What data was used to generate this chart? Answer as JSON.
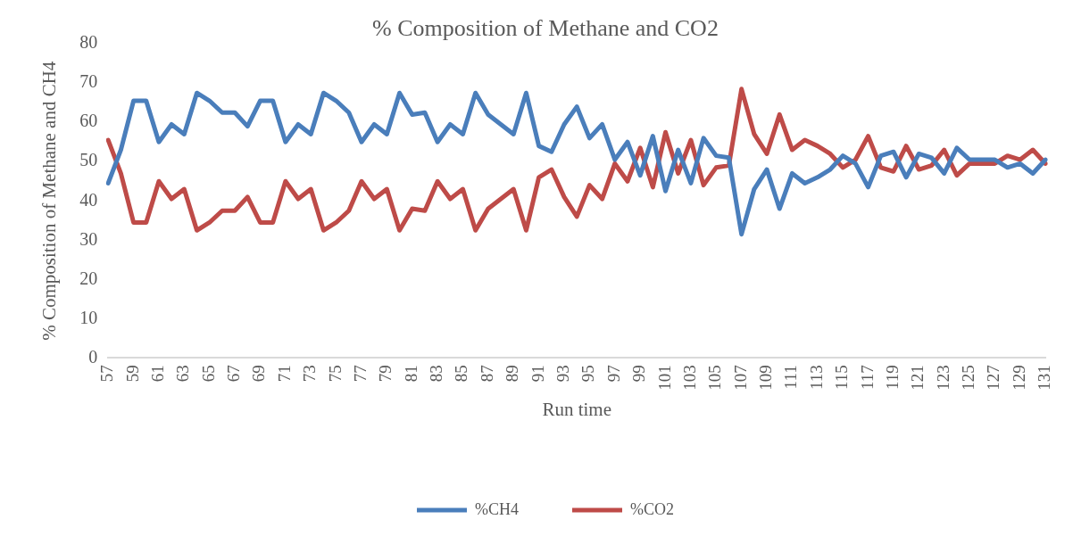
{
  "chart_data": {
    "type": "line",
    "title": "% Composition of Methane and CO2",
    "xlabel": "Run time",
    "ylabel": "% Composition of Methane and CH4",
    "categories": [
      "57",
      null,
      "59",
      null,
      "61",
      null,
      "63",
      null,
      "65",
      null,
      "67",
      null,
      "69",
      null,
      "71",
      null,
      "73",
      null,
      "75",
      null,
      "77",
      null,
      "79",
      null,
      "81",
      null,
      "83",
      null,
      "85",
      null,
      "87",
      null,
      "89",
      null,
      "91",
      null,
      "93",
      null,
      "95",
      null,
      "97",
      null,
      "99",
      null,
      "101",
      null,
      "103",
      null,
      "105",
      null,
      "107",
      null,
      "109",
      null,
      "111",
      null,
      "113",
      null,
      "115",
      null,
      "117",
      null,
      "119",
      null,
      "121",
      null,
      "123",
      null,
      "125",
      null,
      "127",
      null,
      "129",
      null,
      "131"
    ],
    "series": [
      {
        "name": "%CH4",
        "color": "#4a7ebb",
        "values": [
          44.5,
          53,
          65.5,
          65.5,
          55,
          59.5,
          57,
          67.5,
          65.5,
          62.5,
          62.5,
          59,
          65.5,
          65.5,
          55,
          59.5,
          57,
          67.5,
          65.5,
          62.5,
          55,
          59.5,
          57,
          67.5,
          62,
          62.5,
          55,
          59.5,
          57,
          67.5,
          62,
          59.5,
          57,
          67.5,
          54,
          52.5,
          59.5,
          64,
          56,
          59.5,
          50.5,
          55,
          46.5,
          56.5,
          42.5,
          53,
          44.5,
          56,
          51.5,
          51,
          31.5,
          43,
          48,
          38,
          47,
          44.5,
          46,
          48,
          51.5,
          49.5,
          43.5,
          51.5,
          52.5,
          46,
          52,
          51,
          47,
          53.5,
          50.5,
          50.5,
          50.5,
          48.5,
          49.5,
          47,
          50.5
        ]
      },
      {
        "name": "%CO2",
        "color": "#be4b48",
        "values": [
          55.5,
          47,
          34.5,
          34.5,
          45,
          40.5,
          43,
          32.5,
          34.5,
          37.5,
          37.5,
          41,
          34.5,
          34.5,
          45,
          40.5,
          43,
          32.5,
          34.5,
          37.5,
          45,
          40.5,
          43,
          32.5,
          38,
          37.5,
          45,
          40.5,
          43,
          32.5,
          38,
          40.5,
          43,
          32.5,
          46,
          48,
          41,
          36,
          44,
          40.5,
          49.5,
          45,
          53.5,
          43.5,
          57.5,
          47,
          55.5,
          44,
          48.5,
          49,
          68.5,
          57,
          52,
          62,
          53,
          55.5,
          54,
          52,
          48.5,
          50.5,
          56.5,
          48.5,
          47.5,
          54,
          48,
          49,
          53,
          46.5,
          49.5,
          49.5,
          49.5,
          51.5,
          50.5,
          53,
          49.5
        ]
      }
    ],
    "ylim": [
      0,
      80
    ],
    "yticks": [
      0,
      10,
      20,
      30,
      40,
      50,
      60,
      70,
      80
    ],
    "grid": false,
    "legend": "bottom",
    "marker": "none",
    "line_style": "solid"
  }
}
